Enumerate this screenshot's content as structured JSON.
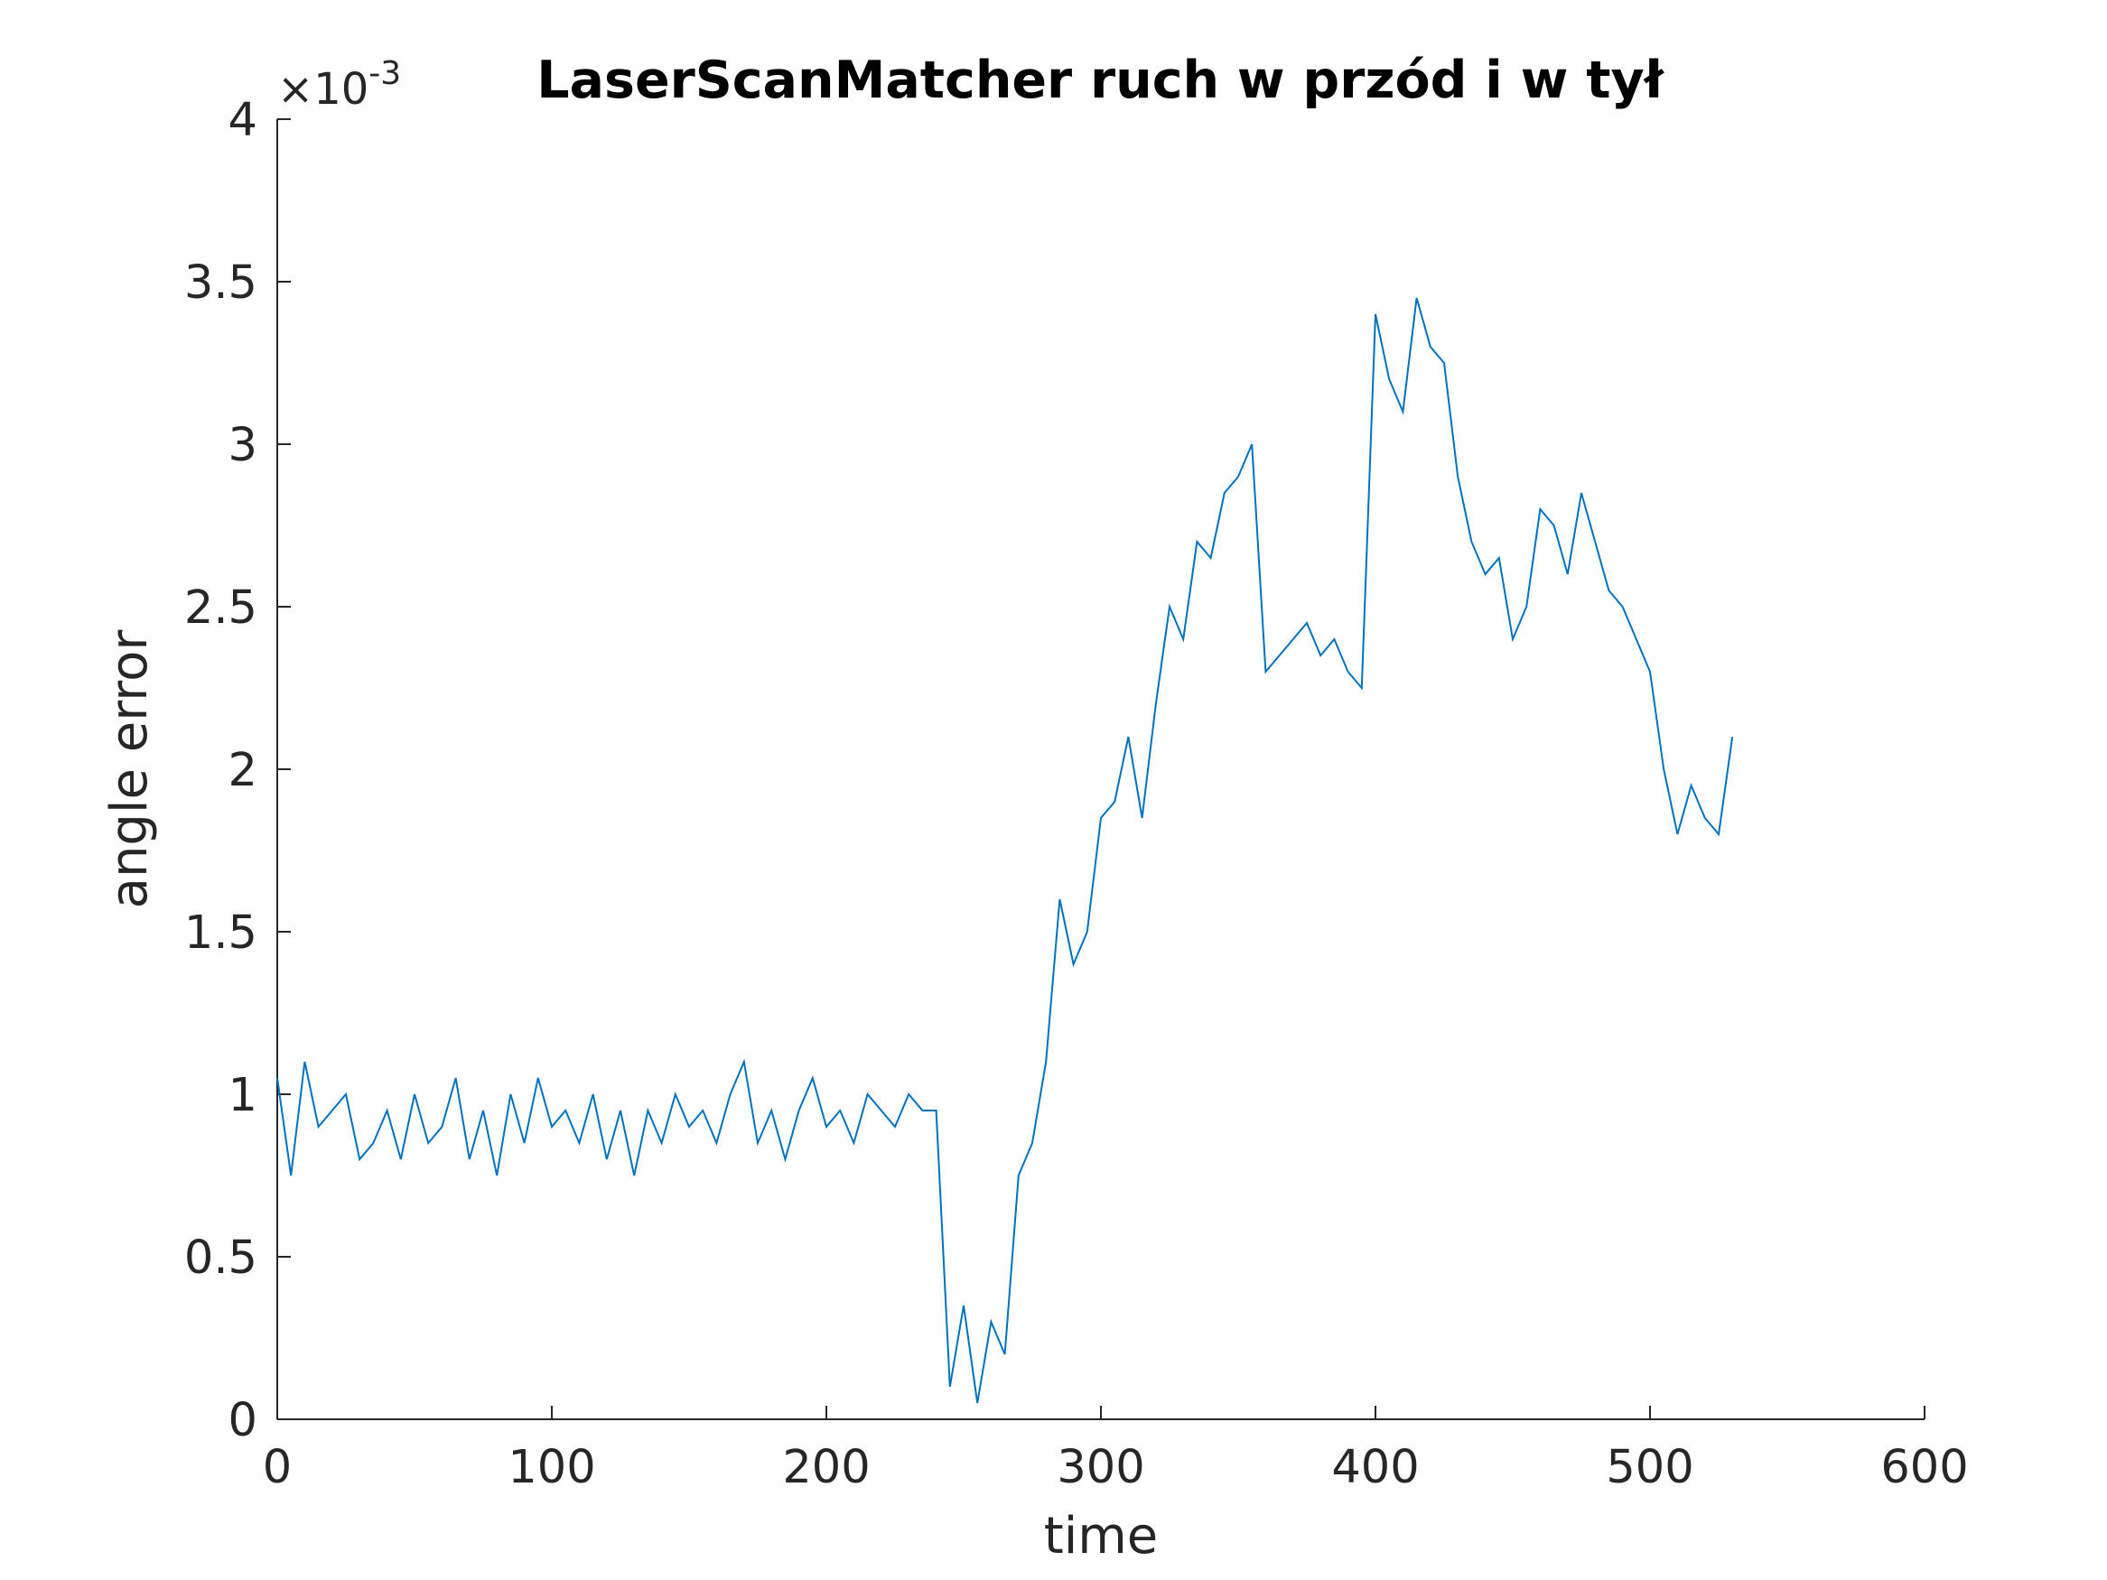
{
  "chart_data": {
    "type": "line",
    "title": "LaserScanMatcher ruch w przód i w tył",
    "x_label": "time",
    "y_label": "angle error",
    "y_multiplier": "×10",
    "y_multiplier_exponent": "-3",
    "x": [
      0,
      5,
      10,
      15,
      20,
      25,
      30,
      35,
      40,
      45,
      50,
      55,
      60,
      65,
      70,
      75,
      80,
      85,
      90,
      95,
      100,
      105,
      110,
      115,
      120,
      125,
      130,
      135,
      140,
      145,
      150,
      155,
      160,
      165,
      170,
      175,
      180,
      185,
      190,
      195,
      200,
      205,
      210,
      215,
      220,
      225,
      230,
      235,
      240,
      245,
      250,
      255,
      260,
      265,
      270,
      275,
      280,
      285,
      290,
      295,
      300,
      305,
      310,
      315,
      320,
      325,
      330,
      335,
      340,
      345,
      350,
      355,
      360,
      365,
      370,
      375,
      380,
      385,
      390,
      395,
      400,
      405,
      410,
      415,
      420,
      425,
      430,
      435,
      440,
      445,
      450,
      455,
      460,
      465,
      470,
      475,
      480,
      485,
      490,
      495,
      500,
      505,
      510,
      515,
      520,
      525,
      530
    ],
    "series": [
      {
        "color": "#0072bd",
        "values": [
          1.05,
          0.75,
          1.1,
          0.9,
          0.95,
          1.0,
          0.8,
          0.85,
          0.95,
          0.8,
          1.0,
          0.85,
          0.9,
          1.05,
          0.8,
          0.95,
          0.75,
          1.0,
          0.85,
          1.05,
          0.9,
          0.95,
          0.85,
          1.0,
          0.8,
          0.95,
          0.75,
          0.95,
          0.85,
          1.0,
          0.9,
          0.95,
          0.85,
          1.0,
          1.1,
          0.85,
          0.95,
          0.8,
          0.95,
          1.05,
          0.9,
          0.95,
          0.85,
          1.0,
          0.95,
          0.9,
          1.0,
          0.95,
          0.95,
          0.1,
          0.35,
          0.05,
          0.3,
          0.2,
          0.75,
          0.85,
          1.1,
          1.6,
          1.4,
          1.5,
          1.85,
          1.9,
          2.1,
          1.85,
          2.2,
          2.5,
          2.4,
          2.7,
          2.65,
          2.85,
          2.9,
          3.0,
          2.3,
          2.35,
          2.4,
          2.45,
          2.35,
          2.4,
          2.3,
          2.25,
          3.4,
          3.2,
          3.1,
          3.45,
          3.3,
          3.25,
          2.9,
          2.7,
          2.6,
          2.65,
          2.4,
          2.5,
          2.8,
          2.75,
          2.6,
          2.85,
          2.7,
          2.55,
          2.5,
          2.4,
          2.3,
          2.0,
          1.8,
          1.95,
          1.85,
          1.8,
          2.1
        ]
      }
    ],
    "xlim": [
      0,
      600
    ],
    "xticks": [
      0,
      100,
      200,
      300,
      400,
      500,
      600
    ],
    "ylim": [
      0,
      4
    ],
    "yticks": [
      0,
      0.5,
      1,
      1.5,
      2,
      2.5,
      3,
      3.5,
      4
    ],
    "grid": false
  }
}
